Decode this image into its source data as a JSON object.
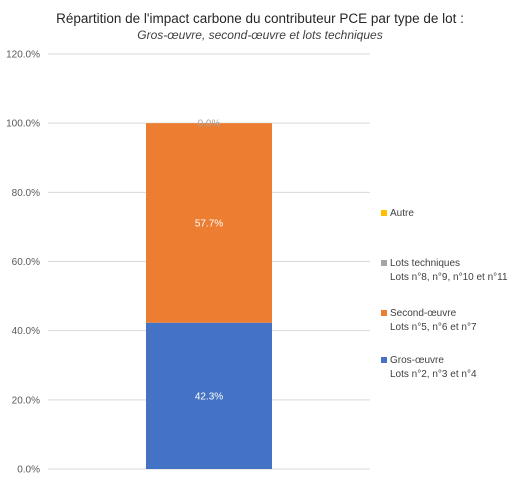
{
  "chart_data": {
    "type": "bar",
    "stacked": true,
    "title": "Répartition de l'impact carbone du contributeur PCE par type de lot :",
    "subtitle": "Gros-œuvre, second-œuvre et lots techniques",
    "categories": [
      ""
    ],
    "ylim": [
      0,
      120
    ],
    "yticks": [
      "0.0%",
      "20.0%",
      "40.0%",
      "60.0%",
      "80.0%",
      "100.0%",
      "120.0%"
    ],
    "ytick_values": [
      0,
      20,
      40,
      60,
      80,
      100,
      120
    ],
    "grid": true,
    "legend_position": "right",
    "series": [
      {
        "name": "Gros-œuvre",
        "sublabel": "Lots n°2, n°3 et n°4",
        "value": 42.3,
        "label": "42.3%",
        "color": "#4472C4",
        "label_color": "#ffffff"
      },
      {
        "name": "Second-œuvre",
        "sublabel": "Lots n°5, n°6 et n°7",
        "value": 57.7,
        "label": "57.7%",
        "color": "#ED7D31",
        "label_color": "#ffffff"
      },
      {
        "name": "Lots techniques",
        "sublabel": "Lots n°8, n°9, n°10 et n°11",
        "value": 0.0,
        "label": "",
        "color": "#A5A5A5",
        "label_color": "#ffffff"
      },
      {
        "name": "Autre",
        "sublabel": "",
        "value": 0.0,
        "label": "0.0%",
        "color": "#FFC000",
        "label_color": "#A5A5A5"
      }
    ]
  }
}
